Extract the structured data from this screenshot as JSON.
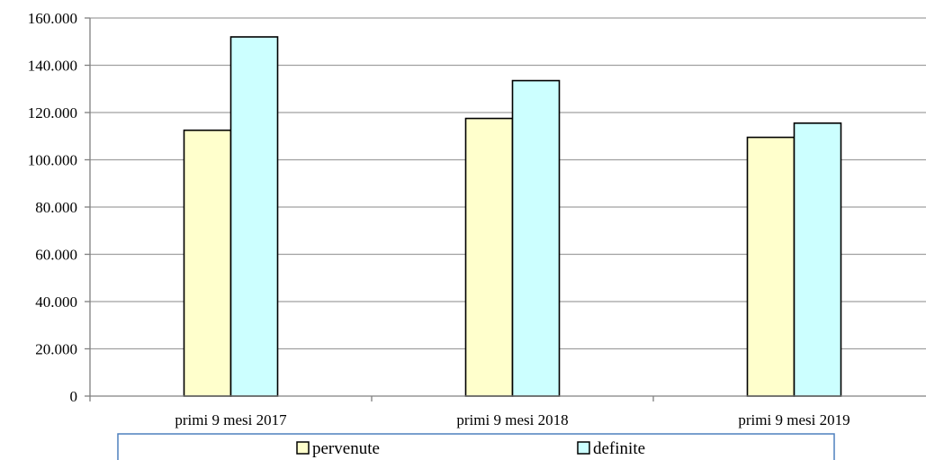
{
  "chart_data": {
    "type": "bar",
    "categories": [
      "primi 9 mesi 2017",
      "primi 9 mesi 2018",
      "primi 9 mesi 2019"
    ],
    "series": [
      {
        "name": "pervenute",
        "color": "#FFFFCC",
        "values": [
          112500,
          117500,
          109500
        ]
      },
      {
        "name": "definite",
        "color": "#CCFFFF",
        "values": [
          152000,
          133500,
          115500
        ]
      }
    ],
    "ylim": [
      0,
      160000
    ],
    "yticks": [
      0,
      20000,
      40000,
      60000,
      80000,
      100000,
      120000,
      140000,
      160000
    ],
    "ytick_labels": [
      "0",
      "20.000",
      "40.000",
      "60.000",
      "80.000",
      "100.000",
      "120.000",
      "140.000",
      "160.000"
    ],
    "grid": true,
    "legend_position": "bottom",
    "colors": {
      "grid": "#A0A0A0",
      "axis": "#808080",
      "bar_edge": "#000000",
      "legend_border": "#4F81BD"
    }
  }
}
